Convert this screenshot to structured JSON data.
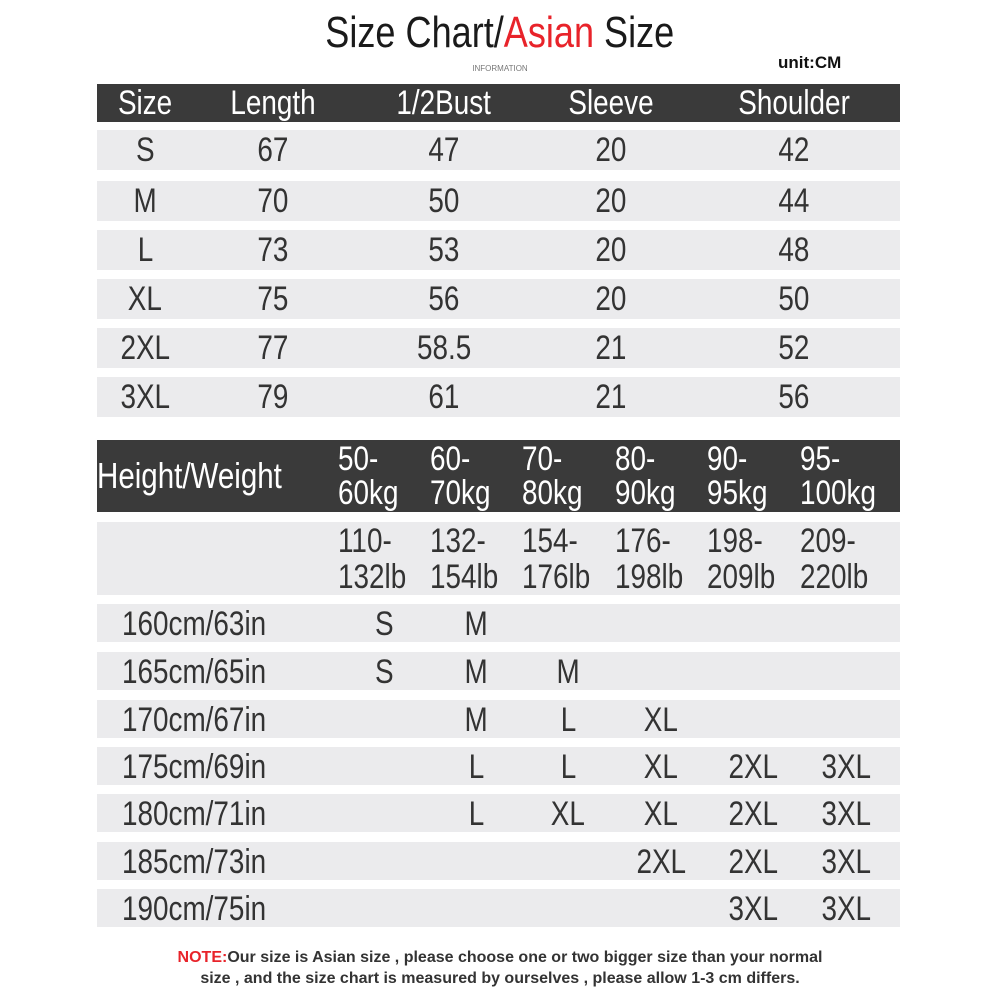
{
  "title": {
    "part1": "Size Chart/",
    "part2": "Asian",
    "part3": " Size"
  },
  "subtitle": "INFORMATION",
  "unit": "unit:CM",
  "size_table": {
    "headers": [
      "Size",
      "Length",
      "1/2Bust",
      "Sleeve",
      "Shoulder"
    ],
    "rows": [
      [
        "S",
        "67",
        "47",
        "20",
        "42"
      ],
      [
        "M",
        "70",
        "50",
        "20",
        "44"
      ],
      [
        "L",
        "73",
        "53",
        "20",
        "48"
      ],
      [
        "XL",
        "75",
        "56",
        "20",
        "50"
      ],
      [
        "2XL",
        "77",
        "58.5",
        "21",
        "52"
      ],
      [
        "3XL",
        "79",
        "61",
        "21",
        "56"
      ]
    ]
  },
  "fit_table": {
    "corner": "Height/Weight",
    "kg": [
      [
        "50-",
        "60kg"
      ],
      [
        "60-",
        "70kg"
      ],
      [
        "70-",
        "80kg"
      ],
      [
        "80-",
        "90kg"
      ],
      [
        "90-",
        "95kg"
      ],
      [
        "95-",
        "100kg"
      ]
    ],
    "lb": [
      [
        "110-",
        "132lb"
      ],
      [
        "132-",
        "154lb"
      ],
      [
        "154-",
        "176lb"
      ],
      [
        "176-",
        "198lb"
      ],
      [
        "198-",
        "209lb"
      ],
      [
        "209-",
        "220lb"
      ]
    ],
    "rows": [
      {
        "height": "160cm/63in",
        "sizes": [
          "S",
          "M",
          "",
          "",
          "",
          ""
        ]
      },
      {
        "height": "165cm/65in",
        "sizes": [
          "S",
          "M",
          "M",
          "",
          "",
          ""
        ]
      },
      {
        "height": "170cm/67in",
        "sizes": [
          "",
          "M",
          "L",
          "XL",
          "",
          ""
        ]
      },
      {
        "height": "175cm/69in",
        "sizes": [
          "",
          "L",
          "L",
          "XL",
          "2XL",
          "3XL"
        ]
      },
      {
        "height": "180cm/71in",
        "sizes": [
          "",
          "L",
          "XL",
          "XL",
          "2XL",
          "3XL"
        ]
      },
      {
        "height": "185cm/73in",
        "sizes": [
          "",
          "",
          "",
          "2XL",
          "2XL",
          "3XL"
        ]
      },
      {
        "height": "190cm/75in",
        "sizes": [
          "",
          "",
          "",
          "",
          "3XL",
          "3XL"
        ]
      }
    ]
  },
  "note": {
    "label": "NOTE:",
    "line1": "Our size is Asian size , please choose one or two bigger size than your normal",
    "line2": "size , and the size chart is measured by ourselves , please allow 1-3 cm differs."
  },
  "colors": {
    "accent": "#e8232a",
    "header_bg": "#3a3a3a",
    "row_bg": "#ebebed"
  }
}
